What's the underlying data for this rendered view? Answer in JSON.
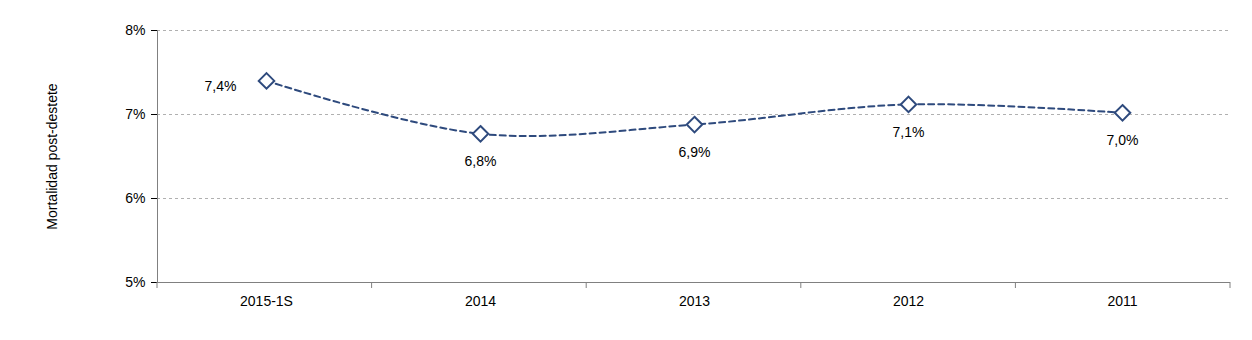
{
  "chart_data": {
    "type": "line",
    "y_label": "Mortalidad post-destete",
    "categories": [
      "2015-1S",
      "2014",
      "2013",
      "2012",
      "2011"
    ],
    "values": [
      7.4,
      6.77,
      6.88,
      7.12,
      7.02
    ],
    "value_labels": [
      "7,4%",
      "6,8%",
      "6,9%",
      "7,1%",
      "7,0%"
    ],
    "data_labels": true,
    "color": "#2e4a7d",
    "marker": "diamond",
    "line_style": "dashed",
    "ylim": [
      5,
      8
    ],
    "yticks": [
      {
        "value": 5,
        "label": "5%"
      },
      {
        "value": 6,
        "label": "6%"
      },
      {
        "value": 7,
        "label": "7%"
      },
      {
        "value": 8,
        "label": "8%"
      }
    ],
    "grid": true
  }
}
